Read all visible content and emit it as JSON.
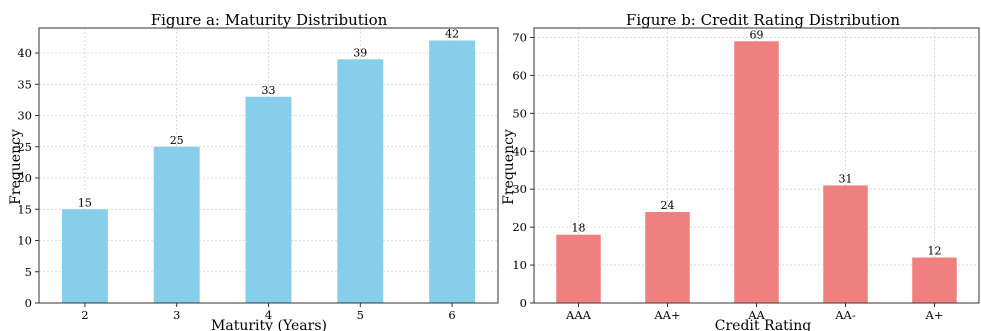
{
  "chart_data": [
    {
      "type": "bar",
      "title": "Figure a: Maturity Distribution",
      "xlabel": "Maturity (Years)",
      "ylabel": "Frequency",
      "categories": [
        "2",
        "3",
        "4",
        "5",
        "6"
      ],
      "values": [
        15,
        25,
        33,
        39,
        42
      ],
      "ylim": [
        0,
        44
      ],
      "yticks": [
        0,
        5,
        10,
        15,
        20,
        25,
        30,
        35,
        40
      ],
      "bar_color": "#87ceeb",
      "grid": true
    },
    {
      "type": "bar",
      "title": "Figure b: Credit Rating Distribution",
      "xlabel": "Credit Rating",
      "ylabel": "Frequency",
      "categories": [
        "AAA",
        "AA+",
        "AA",
        "AA-",
        "A+"
      ],
      "values": [
        18,
        24,
        69,
        31,
        12
      ],
      "ylim": [
        0,
        72.5
      ],
      "yticks": [
        0,
        10,
        20,
        30,
        40,
        50,
        60,
        70
      ],
      "bar_color": "#f08080",
      "grid": true
    }
  ]
}
